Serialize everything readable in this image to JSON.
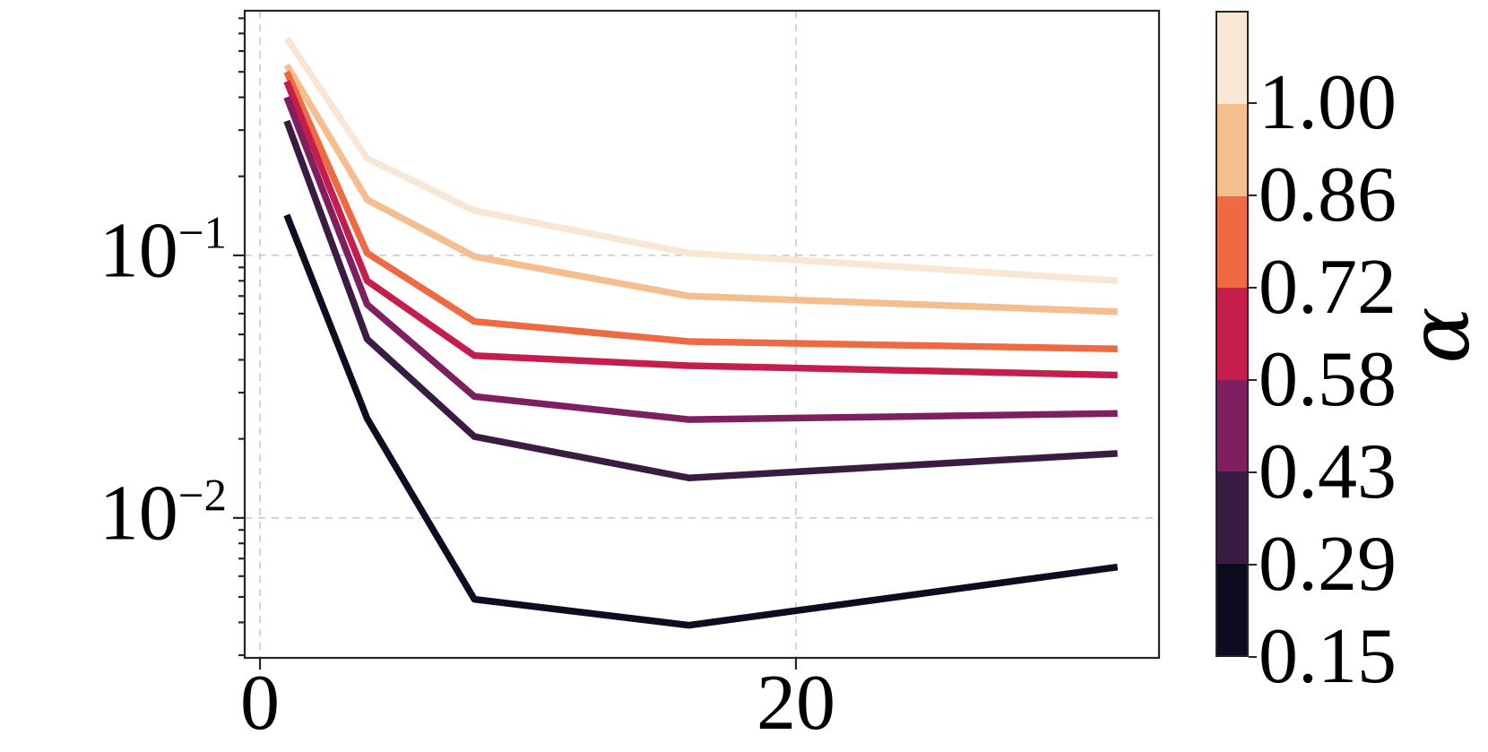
{
  "figure": {
    "background": "#ffffff"
  },
  "chart_data": {
    "type": "line",
    "title": "",
    "xlabel": "",
    "ylabel": "",
    "x": [
      1,
      4,
      8,
      16,
      32
    ],
    "series": [
      {
        "name": "alpha=1.00",
        "alpha": 1.0,
        "color": "#F8E7D4",
        "values": [
          0.67,
          0.234,
          0.148,
          0.102,
          0.08
        ]
      },
      {
        "name": "alpha=0.86",
        "alpha": 0.86,
        "color": "#F5BE8E",
        "values": [
          0.53,
          0.163,
          0.099,
          0.07,
          0.061
        ]
      },
      {
        "name": "alpha=0.72",
        "alpha": 0.72,
        "color": "#EE6A42",
        "values": [
          0.5,
          0.102,
          0.056,
          0.047,
          0.044
        ]
      },
      {
        "name": "alpha=0.58",
        "alpha": 0.58,
        "color": "#C51E4D",
        "values": [
          0.46,
          0.08,
          0.0415,
          0.038,
          0.035
        ]
      },
      {
        "name": "alpha=0.43",
        "alpha": 0.43,
        "color": "#7E2060",
        "values": [
          0.4,
          0.065,
          0.029,
          0.0237,
          0.025
        ]
      },
      {
        "name": "alpha=0.29",
        "alpha": 0.29,
        "color": "#3A1C43",
        "values": [
          0.325,
          0.048,
          0.0204,
          0.0142,
          0.0176
        ]
      },
      {
        "name": "alpha=0.15",
        "alpha": 0.15,
        "color": "#0E0C20",
        "values": [
          0.1425,
          0.0239,
          0.0049,
          0.0039,
          0.0065
        ]
      }
    ],
    "x_axis": {
      "scale": "linear",
      "lim": [
        -0.57,
        33.55
      ],
      "ticks": [
        {
          "value": 0,
          "label": "0"
        },
        {
          "value": 20,
          "label": "20"
        }
      ]
    },
    "y_axis": {
      "scale": "log",
      "lim": [
        0.00293,
        0.8544
      ],
      "ticks": [
        {
          "value": 0.1,
          "base": "10",
          "exp": "−1"
        },
        {
          "value": 0.01,
          "base": "10",
          "exp": "−2"
        }
      ]
    },
    "grid": {
      "show": true,
      "style": "dashed",
      "color": "#cfcfcf"
    },
    "legend_position": "colorbar-right",
    "colorbar": {
      "label": "α",
      "ticks": [
        "1.00",
        "0.86",
        "0.72",
        "0.58",
        "0.43",
        "0.29",
        "0.15"
      ],
      "segment_colors_top_to_bottom": [
        "#F8E7D4",
        "#F5BE8E",
        "#EE6A42",
        "#C51E4D",
        "#7E2060",
        "#3A1C43",
        "#0E0C20"
      ]
    }
  }
}
